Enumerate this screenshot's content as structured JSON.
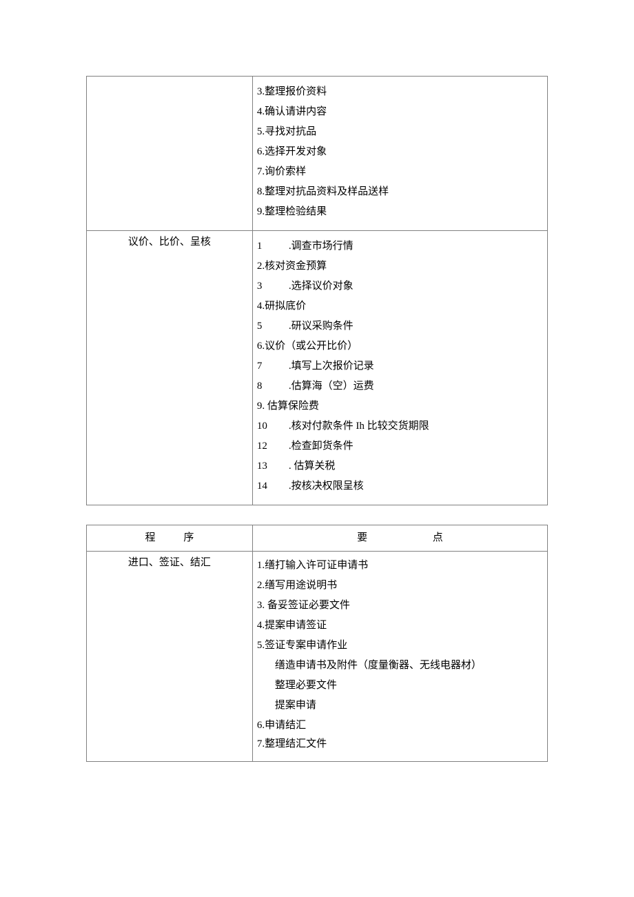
{
  "table1": {
    "rows": [
      {
        "left": "",
        "right_lines": [
          {
            "text": "3.整理报价资料",
            "cls": "line"
          },
          {
            "text": "4.确认请讲内容",
            "cls": "line"
          },
          {
            "text": "5.寻找对抗品",
            "cls": "line"
          },
          {
            "text": "6.选择开发对象",
            "cls": "line"
          },
          {
            "text": "7.询价索样",
            "cls": "line"
          },
          {
            "text": "8.整理对抗品资料及样品送样",
            "cls": "line"
          },
          {
            "text": "9.整理检验结果",
            "cls": "line"
          }
        ]
      },
      {
        "left": "议价、比价、呈核",
        "right_lines": [
          {
            "num": "1",
            "rest": ".调查市场行情",
            "wide": true,
            "cls": "line"
          },
          {
            "text": "2.核对资金预算",
            "cls": "line"
          },
          {
            "num": "3",
            "rest": ".选择议价对象",
            "wide": true,
            "cls": "line"
          },
          {
            "text": "4.研拟底价",
            "cls": "line"
          },
          {
            "num": "5",
            "rest": ".研议采购条件",
            "wide": true,
            "cls": "line"
          },
          {
            "text": "6.议价（或公开比价）",
            "cls": "line"
          },
          {
            "num": "7",
            "rest": ".填写上次报价记录",
            "wide": true,
            "cls": "line"
          },
          {
            "num": "8",
            "rest": ".估算海（空）运费",
            "wide": true,
            "cls": "line"
          },
          {
            "text": "9. 估算保险费",
            "cls": "line"
          },
          {
            "num": "10",
            "rest": ".核对付款条件 Ih 比较交货期限",
            "wide": true,
            "cls": "line"
          },
          {
            "num": "12",
            "rest": ".检查卸货条件",
            "wide": true,
            "cls": "line"
          },
          {
            "num": "13",
            "rest": ". 估算关税",
            "wide": true,
            "cls": "line"
          },
          {
            "num": "14",
            "rest": ".按核决权限呈核",
            "wide": true,
            "cls": "line"
          }
        ]
      }
    ]
  },
  "table2": {
    "header": {
      "left_a": "程",
      "left_b": "序",
      "right_a": "要",
      "right_b": "点"
    },
    "rows": [
      {
        "left": "进口、签证、结汇",
        "right_lines": [
          {
            "text": "1.缮打输入许可证申请书",
            "cls": "line-tight"
          },
          {
            "text": "2.缮写用途说明书",
            "cls": "line"
          },
          {
            "text": "3. 备妥签证必要文件",
            "cls": "line"
          },
          {
            "text": "4.提案申请签证",
            "cls": "line-tight"
          },
          {
            "text": "5.签证专案申请作业",
            "cls": "line"
          },
          {
            "text": "缮造申请书及附件（度量衡器、无线电器材）",
            "cls": "line indent"
          },
          {
            "text": "整理必要文件",
            "cls": "line-tight indent"
          },
          {
            "text": "提案申请",
            "cls": "line indent"
          },
          {
            "text": "6.申请结汇",
            "cls": "line-tight"
          },
          {
            "text": "7.整理结汇文件",
            "cls": "line-tight"
          }
        ]
      }
    ]
  }
}
